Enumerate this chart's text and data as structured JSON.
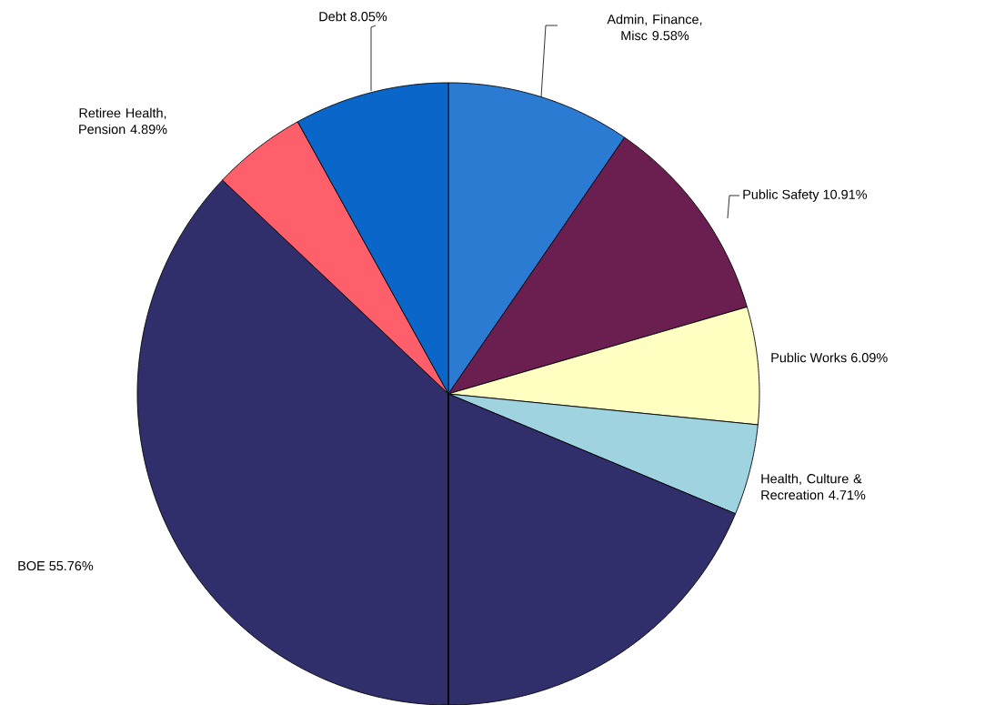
{
  "chart_data": {
    "type": "pie",
    "categories": [
      "Admin, Finance, Misc",
      "Public Safety",
      "Public Works",
      "Health, Culture & Recreation",
      "BOE",
      "Retiree Health, Pension",
      "Debt"
    ],
    "values": [
      9.58,
      10.91,
      6.09,
      4.71,
      55.76,
      4.89,
      8.05
    ],
    "colors": [
      "#2b7bd2",
      "#6a1f50",
      "#ffffc2",
      "#9fd3e0",
      "#302f6c",
      "#ff5f6b",
      "#0b66c9"
    ],
    "value_labels": [
      "9.58%",
      "10.91%",
      "6.09%",
      "4.71%",
      "55.76%",
      "4.89%",
      "8.05%"
    ]
  }
}
